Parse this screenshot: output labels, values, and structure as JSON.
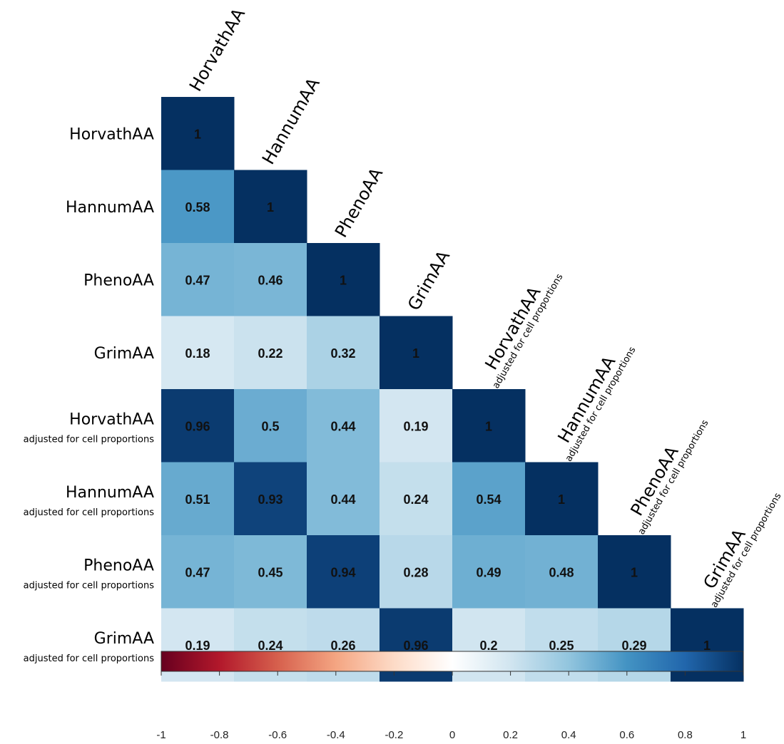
{
  "chart_data": {
    "type": "heatmap",
    "subtype": "correlation-lower-triangle",
    "variables": [
      {
        "name": "HorvathAA",
        "sub": ""
      },
      {
        "name": "HannumAA",
        "sub": ""
      },
      {
        "name": "PhenoAA",
        "sub": ""
      },
      {
        "name": "GrimAA",
        "sub": ""
      },
      {
        "name": "HorvathAA",
        "sub": "adjusted for cell proportions"
      },
      {
        "name": "HannumAA",
        "sub": "adjusted for cell proportions"
      },
      {
        "name": "PhenoAA",
        "sub": "adjusted for cell proportions"
      },
      {
        "name": "GrimAA",
        "sub": "adjusted for cell proportions"
      }
    ],
    "matrix": [
      [
        1
      ],
      [
        0.58,
        1
      ],
      [
        0.47,
        0.46,
        1
      ],
      [
        0.18,
        0.22,
        0.32,
        1
      ],
      [
        0.96,
        0.5,
        0.44,
        0.19,
        1
      ],
      [
        0.51,
        0.93,
        0.44,
        0.24,
        0.54,
        1
      ],
      [
        0.47,
        0.45,
        0.94,
        0.28,
        0.49,
        0.48,
        1
      ],
      [
        0.19,
        0.24,
        0.26,
        0.96,
        0.2,
        0.25,
        0.29,
        1
      ]
    ],
    "colorbar": {
      "range": [
        -1,
        1
      ],
      "ticks": [
        "-1",
        "-0.8",
        "-0.6",
        "-0.4",
        "-0.2",
        "0",
        "0.2",
        "0.4",
        "0.6",
        "0.8",
        "1"
      ],
      "colors": [
        "#67001f",
        "#b2182b",
        "#d6604d",
        "#f4a582",
        "#fddbc7",
        "#ffffff",
        "#d1e5f0",
        "#92c5de",
        "#4393c3",
        "#2166ac",
        "#053061"
      ]
    },
    "grid": false,
    "legend": "bottom"
  }
}
